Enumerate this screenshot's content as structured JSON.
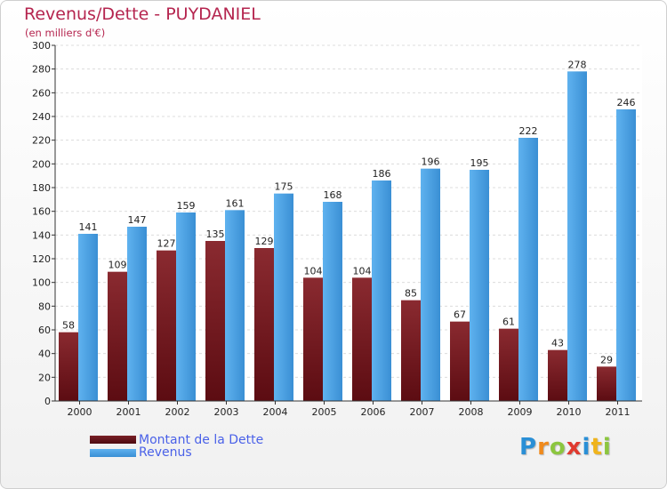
{
  "chart_data": {
    "type": "bar",
    "title": "Revenus/Dette - PUYDANIEL",
    "subtitle": "(en milliers d'€)",
    "categories": [
      "2000",
      "2001",
      "2002",
      "2003",
      "2004",
      "2005",
      "2006",
      "2007",
      "2008",
      "2009",
      "2010",
      "2011"
    ],
    "series": [
      {
        "name": "Montant de la Dette",
        "values": [
          58,
          109,
          127,
          135,
          129,
          104,
          104,
          85,
          67,
          61,
          43,
          29
        ],
        "color": "#7a1f26"
      },
      {
        "name": "Revenus",
        "values": [
          141,
          147,
          159,
          161,
          175,
          168,
          186,
          196,
          195,
          222,
          278,
          246
        ],
        "color": "#4fa3e3"
      }
    ],
    "ylim": [
      0,
      300
    ],
    "ytick_step": 20,
    "grid": true,
    "legend_position": "bottom-left"
  },
  "logo": {
    "letters": [
      "P",
      "r",
      "o",
      "x",
      "i",
      "t",
      "i"
    ],
    "colors": [
      "#2a8fd6",
      "#f08a1c",
      "#8cc63f",
      "#e03a2f",
      "#2a8fd6",
      "#f0b41c",
      "#8cc63f"
    ]
  }
}
